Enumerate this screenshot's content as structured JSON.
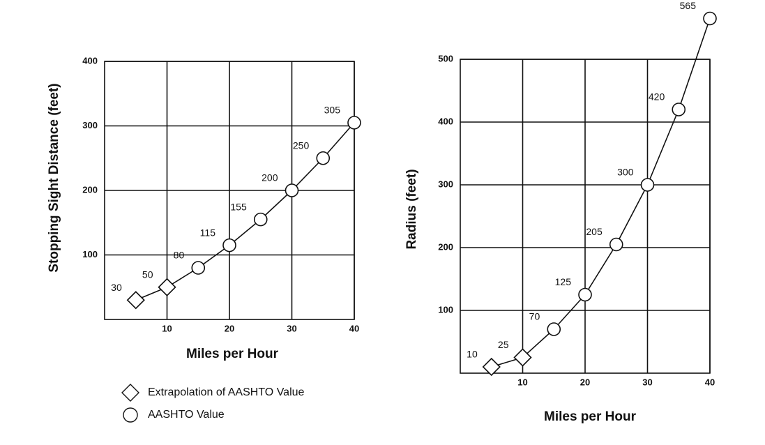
{
  "chart_data": [
    {
      "type": "line",
      "xlabel": "Miles per Hour",
      "ylabel": "Stopping Sight Distance (feet)",
      "xlim": [
        0,
        40
      ],
      "xticks": [
        10,
        20,
        30,
        40
      ],
      "ylim": [
        0,
        400
      ],
      "yticks": [
        100,
        200,
        300,
        400
      ],
      "grid": true,
      "color": "#111111",
      "series": [
        {
          "name": "Extrapolation of AASHTO Value",
          "marker": "diamond",
          "x": [
            5,
            10
          ],
          "values": [
            30,
            50
          ]
        },
        {
          "name": "AASHTO Value",
          "marker": "circle",
          "x": [
            15,
            20,
            25,
            30,
            35,
            40
          ],
          "values": [
            80,
            115,
            155,
            200,
            250,
            305
          ]
        }
      ]
    },
    {
      "type": "line",
      "xlabel": "Miles per Hour",
      "ylabel": "Radius (feet)",
      "xlim": [
        0,
        40
      ],
      "xticks": [
        10,
        20,
        30,
        40
      ],
      "ylim": [
        0,
        500
      ],
      "yticks": [
        100,
        200,
        300,
        400,
        500
      ],
      "grid": true,
      "color": "#111111",
      "series": [
        {
          "marker": "diamond",
          "x": [
            5,
            10
          ],
          "values": [
            10,
            25
          ]
        },
        {
          "marker": "circle",
          "x": [
            15,
            20,
            25,
            30,
            35,
            40
          ],
          "values": [
            70,
            125,
            205,
            300,
            420,
            565
          ]
        }
      ]
    }
  ]
}
